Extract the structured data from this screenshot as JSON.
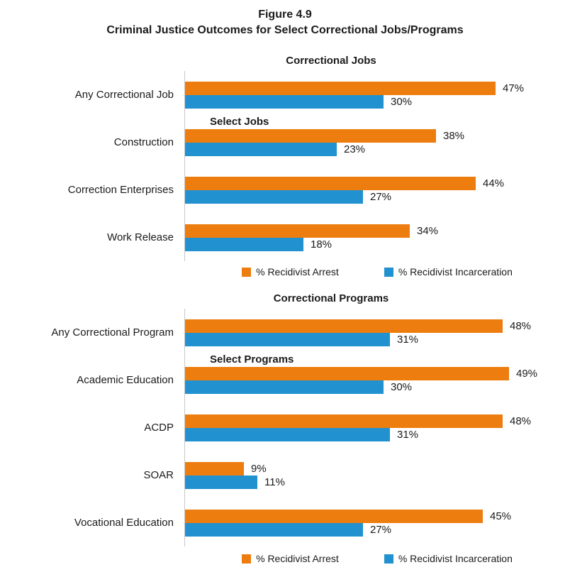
{
  "figure": {
    "label": "Figure 4.9",
    "title": "Criminal Justice Outcomes for Select Correctional Jobs/Programs"
  },
  "legend": {
    "arrest": "% Recidivist Arrest",
    "incarceration": "% Recidivist Incarceration"
  },
  "colors": {
    "arrest": "#ED7D0F",
    "incarceration": "#2191CF",
    "axis_line": "#C9C9C9",
    "text": "#1A1A1A"
  },
  "chart_data": [
    {
      "type": "bar",
      "orientation": "horizontal",
      "title": "Correctional Jobs",
      "inner_label": "Select Jobs",
      "categories": [
        "Any Correctional Job",
        "Construction",
        "Correction Enterprises",
        "Work Release"
      ],
      "series": [
        {
          "name": "% Recidivist Arrest",
          "color": "#ED7D0F",
          "values": [
            47,
            38,
            44,
            34
          ]
        },
        {
          "name": "% Recidivist Incarceration",
          "color": "#2191CF",
          "values": [
            30,
            23,
            27,
            18
          ]
        }
      ],
      "value_format": "percent",
      "data_labels": true,
      "xlim": [
        0,
        55
      ],
      "grid": false,
      "legend_position": "bottom"
    },
    {
      "type": "bar",
      "orientation": "horizontal",
      "title": "Correctional Programs",
      "inner_label": "Select Programs",
      "categories": [
        "Any Correctional Program",
        "Academic Education",
        "ACDP",
        "SOAR",
        "Vocational Education"
      ],
      "series": [
        {
          "name": "% Recidivist Arrest",
          "color": "#ED7D0F",
          "values": [
            48,
            49,
            48,
            9,
            45
          ]
        },
        {
          "name": "% Recidivist Incarceration",
          "color": "#2191CF",
          "values": [
            31,
            30,
            31,
            11,
            27
          ]
        }
      ],
      "value_format": "percent",
      "data_labels": true,
      "xlim": [
        0,
        55
      ],
      "grid": false,
      "legend_position": "bottom"
    }
  ]
}
